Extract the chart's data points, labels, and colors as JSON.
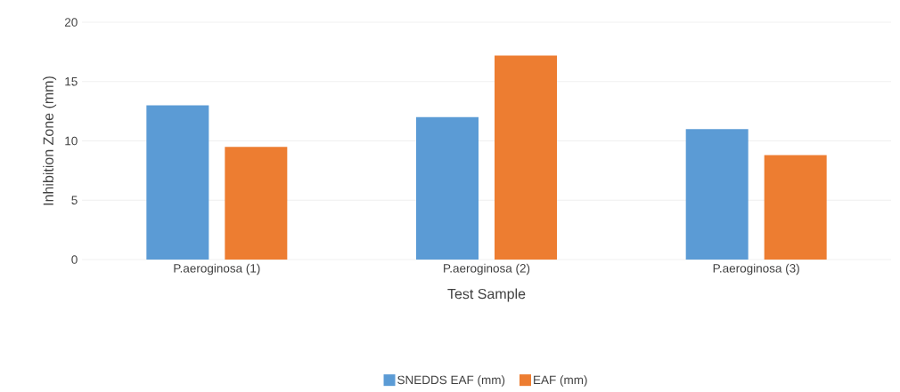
{
  "chart_data": {
    "type": "bar",
    "xlabel": "Test Sample",
    "ylabel": "Inhibition Zone (mm)",
    "categories": [
      "P.aeroginosa (1)",
      "P.aeroginosa (2)",
      "P.aeroginosa (3)"
    ],
    "series": [
      {
        "name": "SNEDDS EAF (mm)",
        "color": "#5b9bd5",
        "values": [
          13,
          12,
          11
        ]
      },
      {
        "name": "EAF (mm)",
        "color": "#ed7d31",
        "values": [
          9.5,
          17.2,
          8.8
        ]
      }
    ],
    "ylim": [
      0,
      20
    ],
    "yticks": [
      0,
      5,
      10,
      15,
      20
    ],
    "grid": "y",
    "legend": "bottom"
  }
}
